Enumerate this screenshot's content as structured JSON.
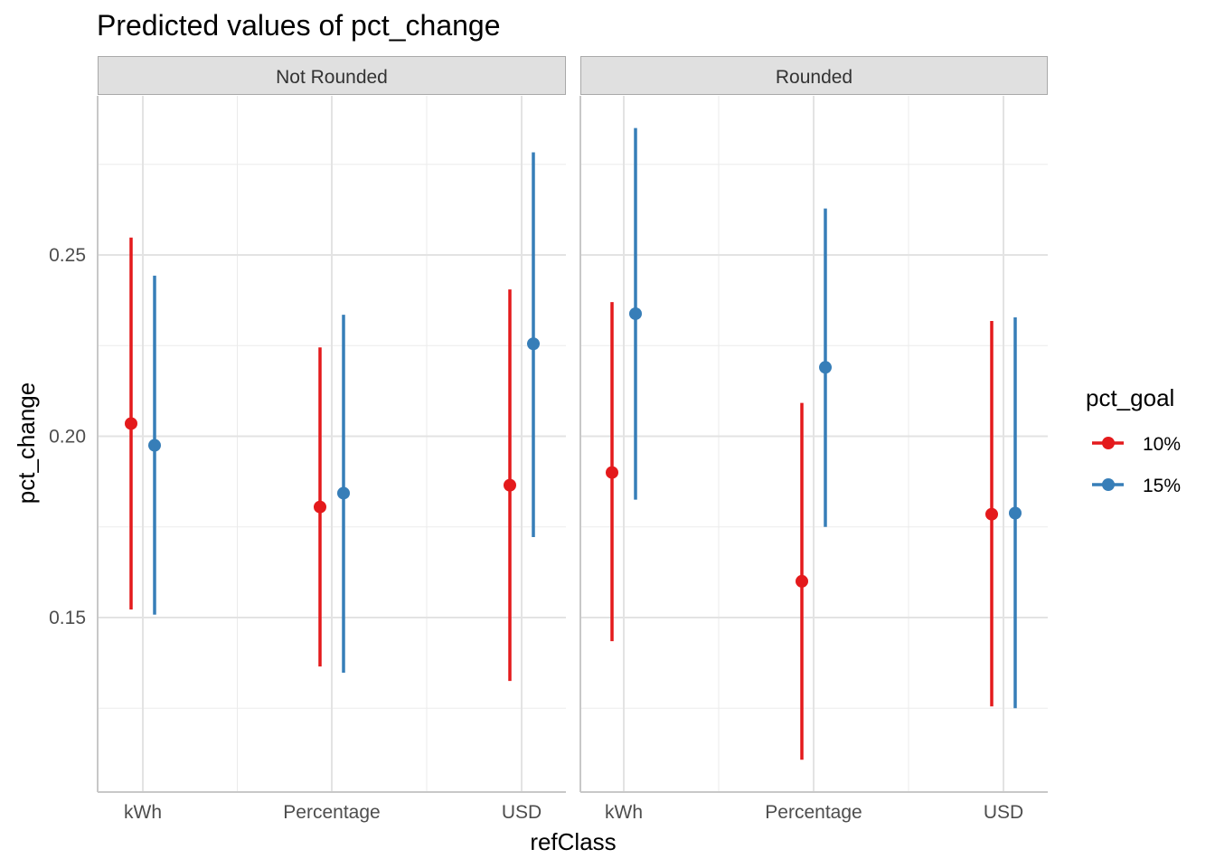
{
  "chart_data": {
    "type": "scatter",
    "title": "Predicted values of pct_change",
    "xlabel": "refClass",
    "ylabel": "pct_change",
    "ylim": [
      0.102,
      0.293
    ],
    "y_ticks": [
      "0.15",
      "0.20",
      "0.25"
    ],
    "y_tick_values": [
      0.15,
      0.2,
      0.25
    ],
    "categories": [
      "kWh",
      "Percentage",
      "USD"
    ],
    "facets": [
      "Not Rounded",
      "Rounded"
    ],
    "grid": true,
    "legend_placement": "right",
    "legend": {
      "title": "pct_goal",
      "entries": [
        {
          "label": "10%",
          "color": "#E41A1C"
        },
        {
          "label": "15%",
          "color": "#377EB8"
        }
      ]
    },
    "series": [
      {
        "name": "10%",
        "color": "#E41A1C",
        "panels": [
          {
            "facet": "Not Rounded",
            "values": [
              0.2035,
              0.1805,
              0.1865
            ],
            "lower": [
              0.1522,
              0.1365,
              0.1325
            ],
            "upper": [
              0.2548,
              0.2245,
              0.2405
            ]
          },
          {
            "facet": "Rounded",
            "values": [
              0.19,
              0.16,
              0.1785
            ],
            "lower": [
              0.1435,
              0.1108,
              0.1255
            ],
            "upper": [
              0.237,
              0.2092,
              0.2318
            ]
          }
        ]
      },
      {
        "name": "15%",
        "color": "#377EB8",
        "panels": [
          {
            "facet": "Not Rounded",
            "values": [
              0.1975,
              0.1843,
              0.2255
            ],
            "lower": [
              0.1508,
              0.1348,
              0.1722
            ],
            "upper": [
              0.2443,
              0.2335,
              0.2783
            ]
          },
          {
            "facet": "Rounded",
            "values": [
              0.2338,
              0.219,
              0.1788
            ],
            "lower": [
              0.1825,
              0.175,
              0.125
            ],
            "upper": [
              0.285,
              0.2628,
              0.2328
            ]
          }
        ]
      }
    ]
  }
}
